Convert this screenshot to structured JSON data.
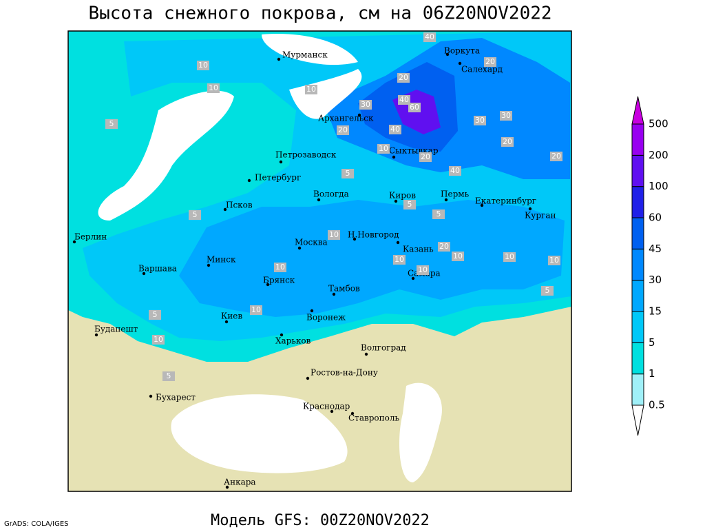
{
  "title": "Высота снежного покрова, см на 06Z20NOV2022",
  "footer": {
    "model": "Модель GFS: 00Z20NOV2022",
    "credit": "GrADS: COLA/IGES"
  },
  "cities": [
    "Мурманск",
    "Воркута",
    "Салехард",
    "Архангельск",
    "Сыктывкар",
    "Петрозаводск",
    "Петербург",
    "Вологда",
    "Киров",
    "Пермь",
    "Екатеринбург",
    "Курган",
    "Псков",
    "Берлин",
    "Н.Новгород",
    "Москва",
    "Казань",
    "Минск",
    "Варшава",
    "Самара",
    "Брянск",
    "Тамбов",
    "Киев",
    "Воронеж",
    "Будапешт",
    "Харьков",
    "Волгоград",
    "Ростов-на-Дону",
    "Бухарест",
    "Краснодар",
    "Ставрополь",
    "Анкара"
  ],
  "contour_labels": [
    10,
    10,
    10,
    5,
    30,
    20,
    60,
    40,
    40,
    20,
    40,
    20,
    30,
    30,
    20,
    20,
    40,
    20,
    10,
    5,
    5,
    5,
    10,
    10,
    20,
    10,
    10,
    10,
    5,
    10,
    10,
    10,
    5,
    10,
    5,
    5
  ],
  "legend": {
    "levels": [
      0.5,
      1,
      5,
      15,
      30,
      45,
      60,
      100,
      200,
      500
    ],
    "colors": [
      "#ffffff",
      "#a0f0f8",
      "#00e0e0",
      "#00c8f8",
      "#00a8ff",
      "#0088ff",
      "#0060f0",
      "#2020e8",
      "#6010f0",
      "#9800f0",
      "#c800e0"
    ]
  }
}
